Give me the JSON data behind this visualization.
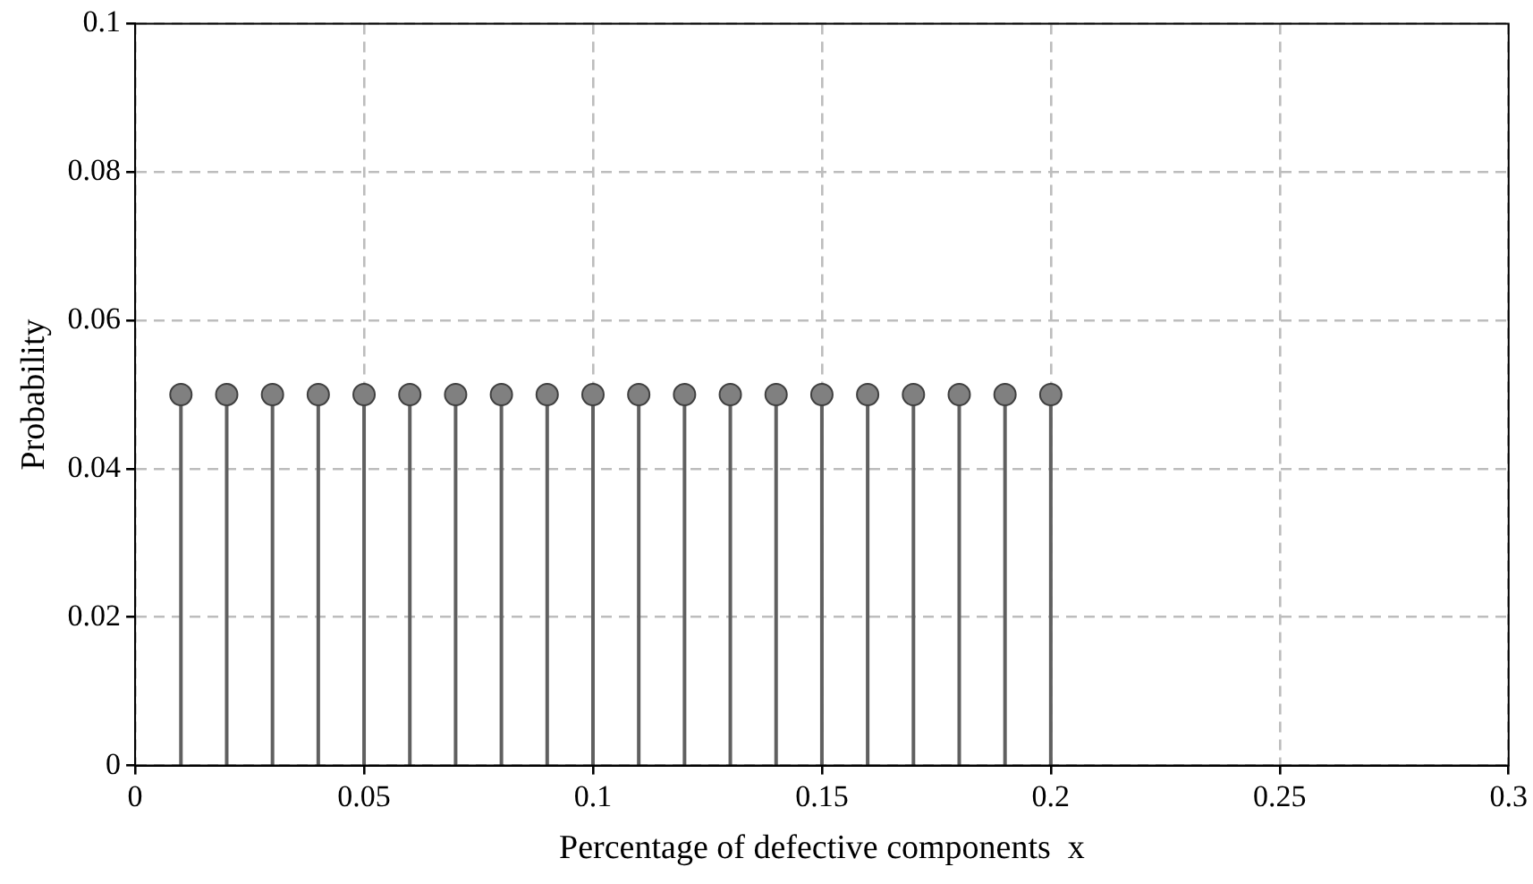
{
  "chart_data": {
    "type": "lollipop",
    "xlabel": "Percentage of defective components  x",
    "ylabel": "Probability",
    "x": [
      0.01,
      0.02,
      0.03,
      0.04,
      0.05,
      0.06,
      0.07,
      0.08,
      0.09,
      0.1,
      0.11,
      0.12,
      0.13,
      0.14,
      0.15,
      0.16,
      0.17,
      0.18,
      0.19,
      0.2
    ],
    "values": [
      0.05,
      0.05,
      0.05,
      0.05,
      0.05,
      0.05,
      0.05,
      0.05,
      0.05,
      0.05,
      0.05,
      0.05,
      0.05,
      0.05,
      0.05,
      0.05,
      0.05,
      0.05,
      0.05,
      0.05
    ],
    "color": "#808080",
    "xlim": [
      0,
      0.3
    ],
    "xticks": [
      0,
      0.05,
      0.1,
      0.15,
      0.2,
      0.25,
      0.3
    ],
    "ylim": [
      0,
      0.1
    ],
    "yticks": [
      0,
      0.02,
      0.04,
      0.06,
      0.08,
      0.1
    ],
    "grid": true,
    "marker": "circle",
    "legend": false
  }
}
